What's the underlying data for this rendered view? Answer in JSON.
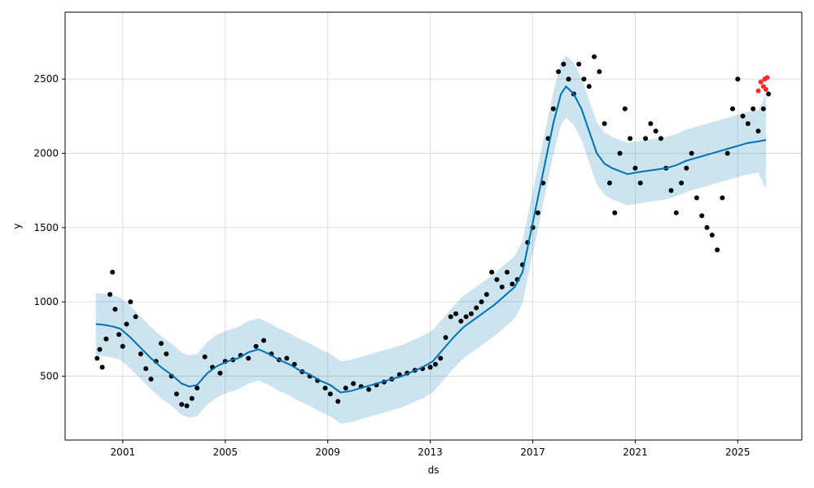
{
  "chart_data": {
    "type": "scatter",
    "title": "",
    "xlabel": "ds",
    "ylabel": "y",
    "xlim": [
      1998.75,
      2027.5
    ],
    "ylim": [
      70,
      2950
    ],
    "grid": true,
    "x_ticks": [
      2001,
      2005,
      2009,
      2013,
      2017,
      2021,
      2025
    ],
    "x_tick_labels": [
      "2001",
      "2005",
      "2009",
      "2013",
      "2017",
      "2021",
      "2025"
    ],
    "y_ticks": [
      500,
      1000,
      1500,
      2000,
      2500
    ],
    "y_tick_labels": [
      "500",
      "1000",
      "1500",
      "2000",
      "2500"
    ],
    "colors": {
      "observed": "#000000",
      "forecast": "#0072B2",
      "band": "#0072B2",
      "recent_actual": "#ff2a2a",
      "grid": "#dddddd"
    },
    "series": [
      {
        "role": "observed",
        "x": [
          2000.0,
          2000.1,
          2000.2,
          2000.35,
          2000.5,
          2000.6,
          2000.7,
          2000.85,
          2001.0,
          2001.15,
          2001.3,
          2001.5,
          2001.7,
          2001.9,
          2002.1,
          2002.3,
          2002.5,
          2002.7,
          2002.9,
          2003.1,
          2003.3,
          2003.5,
          2003.7,
          2003.9,
          2004.2,
          2004.5,
          2004.8,
          2005.0,
          2005.3,
          2005.6,
          2005.9,
          2006.2,
          2006.5,
          2006.8,
          2007.1,
          2007.4,
          2007.7,
          2008.0,
          2008.3,
          2008.6,
          2008.9,
          2009.1,
          2009.4,
          2009.7,
          2010.0,
          2010.3,
          2010.6,
          2010.9,
          2011.2,
          2011.5,
          2011.8,
          2012.1,
          2012.4,
          2012.7,
          2013.0,
          2013.2,
          2013.4,
          2013.6,
          2013.8,
          2014.0,
          2014.2,
          2014.4,
          2014.6,
          2014.8,
          2015.0,
          2015.2,
          2015.4,
          2015.6,
          2015.8,
          2016.0,
          2016.2,
          2016.4,
          2016.6,
          2016.8,
          2017.0,
          2017.2,
          2017.4,
          2017.6,
          2017.8,
          2018.0,
          2018.2,
          2018.4,
          2018.6,
          2018.8,
          2019.0,
          2019.2,
          2019.4,
          2019.6,
          2019.8,
          2020.0,
          2020.2,
          2020.4,
          2020.6,
          2020.8,
          2021.0,
          2021.2,
          2021.4,
          2021.6,
          2021.8,
          2022.0,
          2022.2,
          2022.4,
          2022.6,
          2022.8,
          2023.0,
          2023.2,
          2023.4,
          2023.6,
          2023.8,
          2024.0,
          2024.2,
          2024.4,
          2024.6,
          2024.8,
          2025.0,
          2025.2,
          2025.4,
          2025.6,
          2025.8,
          2026.0,
          2026.2
        ],
        "y": [
          620,
          680,
          560,
          750,
          1050,
          1200,
          950,
          780,
          700,
          850,
          1000,
          900,
          650,
          550,
          480,
          600,
          720,
          650,
          500,
          380,
          310,
          300,
          350,
          420,
          630,
          560,
          520,
          600,
          610,
          640,
          620,
          700,
          740,
          650,
          610,
          620,
          580,
          530,
          500,
          470,
          420,
          380,
          330,
          420,
          450,
          430,
          410,
          440,
          460,
          480,
          510,
          520,
          540,
          550,
          560,
          580,
          620,
          760,
          900,
          920,
          870,
          900,
          920,
          960,
          1000,
          1050,
          1200,
          1150,
          1100,
          1200,
          1120,
          1150,
          1250,
          1400,
          1500,
          1600,
          1800,
          2100,
          2300,
          2550,
          2600,
          2500,
          2400,
          2600,
          2500,
          2450,
          2650,
          2550,
          2200,
          1800,
          1600,
          2000,
          2300,
          2100,
          1900,
          1800,
          2100,
          2200,
          2150,
          2100,
          1900,
          1750,
          1600,
          1800,
          1900,
          2000,
          1700,
          1580,
          1500,
          1450,
          1350,
          1700,
          2000,
          2300,
          2500,
          2250,
          2200,
          2300,
          2150,
          2300,
          2400
        ]
      },
      {
        "role": "forecast",
        "x": [
          1999.95,
          2000.3,
          2000.6,
          2000.9,
          2001.3,
          2001.7,
          2002.1,
          2002.5,
          2002.9,
          2003.3,
          2003.6,
          2003.9,
          2004.3,
          2004.7,
          2005.1,
          2005.5,
          2005.9,
          2006.3,
          2006.7,
          2007.1,
          2007.5,
          2007.9,
          2008.3,
          2008.7,
          2009.1,
          2009.5,
          2009.9,
          2010.3,
          2010.7,
          2011.1,
          2011.5,
          2011.9,
          2012.3,
          2012.7,
          2013.1,
          2013.5,
          2013.9,
          2014.3,
          2014.7,
          2015.1,
          2015.5,
          2015.9,
          2016.3,
          2016.6,
          2016.9,
          2017.2,
          2017.5,
          2017.8,
          2018.1,
          2018.3,
          2018.6,
          2018.9,
          2019.2,
          2019.5,
          2019.8,
          2020.1,
          2020.4,
          2020.7,
          2021.0,
          2021.4,
          2021.8,
          2022.2,
          2022.6,
          2023.0,
          2023.4,
          2023.8,
          2024.2,
          2024.6,
          2025.0,
          2025.4,
          2025.8,
          2026.1
        ],
        "y": [
          850,
          845,
          835,
          820,
          760,
          690,
          620,
          560,
          510,
          450,
          430,
          440,
          520,
          570,
          600,
          620,
          660,
          680,
          650,
          610,
          580,
          540,
          510,
          470,
          440,
          390,
          400,
          420,
          440,
          460,
          480,
          500,
          530,
          560,
          600,
          680,
          760,
          830,
          880,
          930,
          980,
          1040,
          1100,
          1200,
          1450,
          1700,
          1950,
          2200,
          2400,
          2450,
          2400,
          2300,
          2150,
          2000,
          1930,
          1900,
          1880,
          1860,
          1870,
          1880,
          1890,
          1900,
          1920,
          1950,
          1970,
          1990,
          2010,
          2030,
          2050,
          2070,
          2080,
          2090
        ]
      },
      {
        "role": "interval",
        "x": [
          1999.95,
          2000.3,
          2000.6,
          2000.9,
          2001.3,
          2001.7,
          2002.1,
          2002.5,
          2002.9,
          2003.3,
          2003.6,
          2003.9,
          2004.3,
          2004.7,
          2005.1,
          2005.5,
          2005.9,
          2006.3,
          2006.7,
          2007.1,
          2007.5,
          2007.9,
          2008.3,
          2008.7,
          2009.1,
          2009.5,
          2009.9,
          2010.3,
          2010.7,
          2011.1,
          2011.5,
          2011.9,
          2012.3,
          2012.7,
          2013.1,
          2013.5,
          2013.9,
          2014.3,
          2014.7,
          2015.1,
          2015.5,
          2015.9,
          2016.3,
          2016.6,
          2016.9,
          2017.2,
          2017.5,
          2017.8,
          2018.1,
          2018.3,
          2018.6,
          2018.9,
          2019.2,
          2019.5,
          2019.8,
          2020.1,
          2020.4,
          2020.7,
          2021.0,
          2021.4,
          2021.8,
          2022.2,
          2022.6,
          2023.0,
          2023.4,
          2023.8,
          2024.2,
          2024.6,
          2025.0,
          2025.4,
          2025.8,
          2026.1
        ],
        "lower": [
          640,
          635,
          625,
          610,
          550,
          480,
          410,
          350,
          300,
          240,
          220,
          230,
          310,
          360,
          390,
          410,
          450,
          470,
          440,
          400,
          370,
          330,
          300,
          260,
          230,
          180,
          190,
          210,
          230,
          250,
          270,
          290,
          320,
          350,
          390,
          470,
          550,
          620,
          670,
          720,
          770,
          830,
          890,
          990,
          1240,
          1490,
          1740,
          1990,
          2190,
          2240,
          2190,
          2090,
          1940,
          1790,
          1720,
          1690,
          1670,
          1650,
          1660,
          1670,
          1680,
          1690,
          1710,
          1740,
          1760,
          1780,
          1800,
          1820,
          1840,
          1860,
          1870,
          1760
        ],
        "upper": [
          1060,
          1055,
          1045,
          1030,
          970,
          900,
          830,
          770,
          720,
          660,
          640,
          650,
          730,
          780,
          810,
          830,
          870,
          890,
          860,
          820,
          790,
          750,
          720,
          680,
          650,
          600,
          610,
          630,
          650,
          670,
          690,
          710,
          740,
          770,
          810,
          890,
          970,
          1040,
          1090,
          1140,
          1190,
          1250,
          1310,
          1410,
          1660,
          1910,
          2160,
          2410,
          2610,
          2660,
          2610,
          2510,
          2360,
          2210,
          2140,
          2110,
          2090,
          2070,
          2080,
          2090,
          2100,
          2110,
          2130,
          2160,
          2180,
          2200,
          2220,
          2240,
          2260,
          2280,
          2290,
          2400
        ]
      },
      {
        "role": "recent_actual",
        "x": [
          2025.8,
          2025.9,
          2026.0,
          2026.05,
          2026.1,
          2026.15
        ],
        "y": [
          2420,
          2480,
          2450,
          2500,
          2430,
          2510
        ]
      }
    ]
  }
}
